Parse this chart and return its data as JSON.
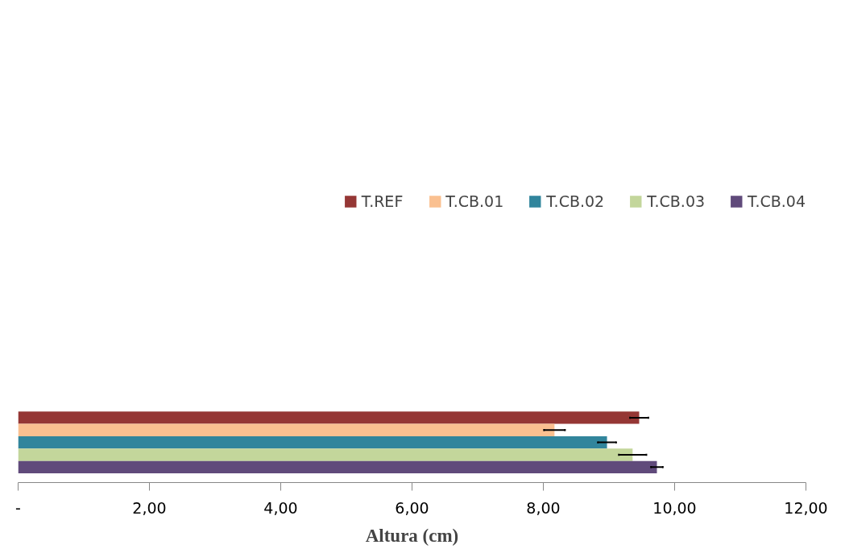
{
  "chart_data": {
    "type": "bar",
    "orientation": "horizontal",
    "xlabel": "Altura (cm)",
    "categories": [
      null
    ],
    "series": [
      {
        "name": "T.REF",
        "color": "#953735",
        "values": [
          9.46
        ],
        "errors": [
          0.14
        ]
      },
      {
        "name": "T.CB.01",
        "color": "#fac090",
        "values": [
          8.17
        ],
        "errors": [
          0.16
        ]
      },
      {
        "name": "T.CB.02",
        "color": "#31859c",
        "values": [
          8.97
        ],
        "errors": [
          0.14
        ]
      },
      {
        "name": "T.CB.03",
        "color": "#c3d69b",
        "values": [
          9.36
        ],
        "errors": [
          0.21
        ]
      },
      {
        "name": "T.CB.04",
        "color": "#604a7b",
        "values": [
          9.73
        ],
        "errors": [
          0.09
        ]
      }
    ],
    "xlim": [
      0,
      12
    ],
    "xticks": [
      {
        "value": 0,
        "label": "-"
      },
      {
        "value": 2,
        "label": "2,00"
      },
      {
        "value": 4,
        "label": "4,00"
      },
      {
        "value": 6,
        "label": "6,00"
      },
      {
        "value": 8,
        "label": "8,00"
      },
      {
        "value": 10,
        "label": "10,00"
      },
      {
        "value": 12,
        "label": "12,00"
      }
    ],
    "tick_labels": "x",
    "grid": false,
    "legend": "top"
  }
}
